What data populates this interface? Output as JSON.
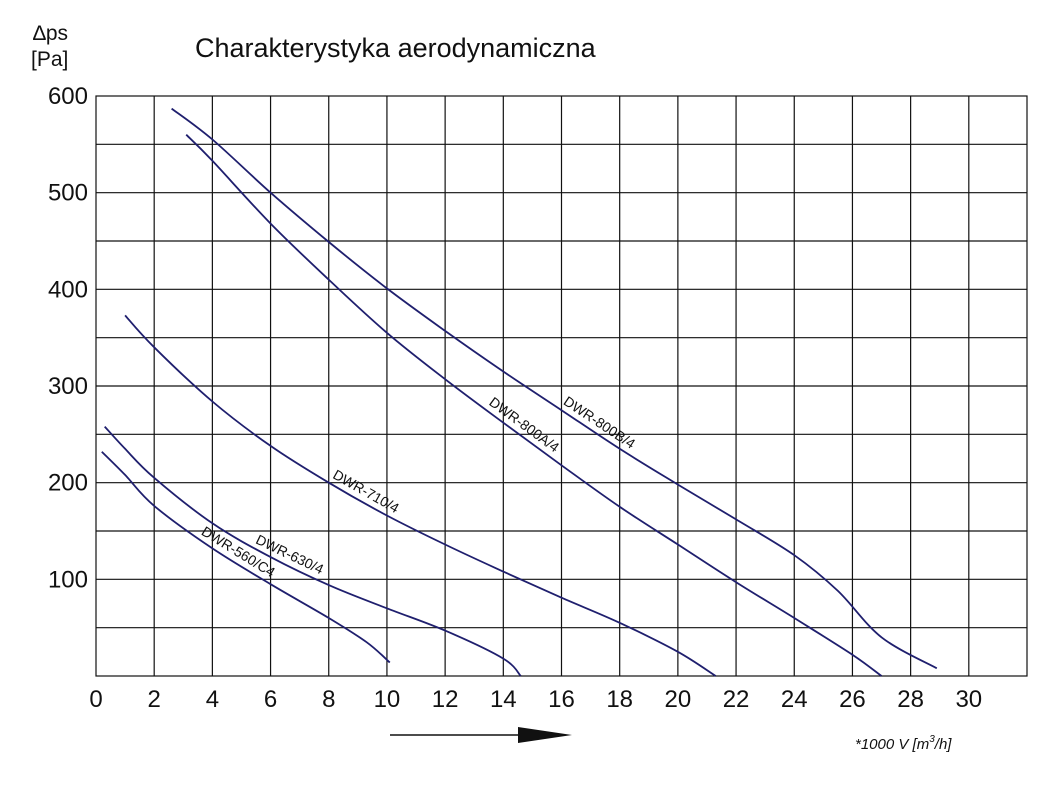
{
  "chart_data": {
    "type": "line",
    "title": "Charakterystyka aerodynamiczna",
    "ylabel_line1": "∆ps",
    "ylabel_line2": "[Pa]",
    "xlabel_prefix": "*1000 V [m",
    "xlabel_sup": "3",
    "xlabel_suffix": "/h]",
    "xlim": [
      0,
      32
    ],
    "ylim": [
      0,
      600
    ],
    "x_ticks": [
      0,
      2,
      4,
      6,
      8,
      10,
      12,
      14,
      16,
      18,
      20,
      22,
      24,
      26,
      28,
      30
    ],
    "y_ticks": [
      100,
      200,
      300,
      400,
      500,
      600
    ],
    "grid": true,
    "series": [
      {
        "name": "DWR-800B/4",
        "label_at": 17.1,
        "points": [
          [
            2.6,
            587
          ],
          [
            4,
            555
          ],
          [
            6,
            500
          ],
          [
            8,
            449
          ],
          [
            10,
            401
          ],
          [
            12,
            357
          ],
          [
            14,
            315
          ],
          [
            16,
            275
          ],
          [
            18,
            235
          ],
          [
            20,
            198
          ],
          [
            22,
            162
          ],
          [
            24,
            125
          ],
          [
            25.5,
            88
          ],
          [
            27,
            40
          ],
          [
            28.9,
            8
          ]
        ]
      },
      {
        "name": "DWR-800A/4",
        "label_at": 14.5,
        "points": [
          [
            3.1,
            560
          ],
          [
            4,
            533
          ],
          [
            6,
            468
          ],
          [
            8,
            410
          ],
          [
            10,
            355
          ],
          [
            12,
            307
          ],
          [
            14,
            262
          ],
          [
            16,
            218
          ],
          [
            18,
            175
          ],
          [
            20,
            136
          ],
          [
            22,
            97
          ],
          [
            24,
            60
          ],
          [
            26,
            22
          ],
          [
            27.0,
            0
          ]
        ]
      },
      {
        "name": "DWR-710/4",
        "label_at": 9.1,
        "points": [
          [
            1.0,
            373
          ],
          [
            2,
            340
          ],
          [
            4,
            284
          ],
          [
            6,
            238
          ],
          [
            8,
            200
          ],
          [
            10,
            166
          ],
          [
            12,
            136
          ],
          [
            14,
            108
          ],
          [
            16,
            81
          ],
          [
            18,
            55
          ],
          [
            20,
            25
          ],
          [
            21.3,
            0
          ]
        ]
      },
      {
        "name": "DWR-630/4",
        "label_at": 6.5,
        "points": [
          [
            0.3,
            258
          ],
          [
            1,
            235
          ],
          [
            2,
            205
          ],
          [
            4,
            158
          ],
          [
            6,
            123
          ],
          [
            8,
            94
          ],
          [
            10,
            70
          ],
          [
            12,
            47
          ],
          [
            14,
            18
          ],
          [
            14.6,
            0
          ]
        ]
      },
      {
        "name": "DWR-560/C4",
        "label_at": 4.7,
        "points": [
          [
            0.2,
            232
          ],
          [
            1,
            208
          ],
          [
            2,
            176
          ],
          [
            4,
            132
          ],
          [
            6,
            95
          ],
          [
            8,
            60
          ],
          [
            9.3,
            35
          ],
          [
            10.1,
            14
          ]
        ]
      }
    ]
  }
}
